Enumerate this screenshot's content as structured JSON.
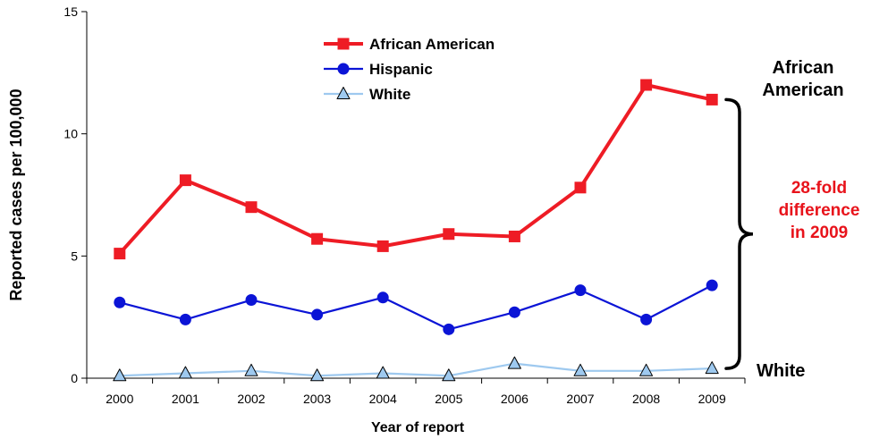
{
  "chart_data": {
    "type": "line",
    "title": "",
    "xlabel": "Year of report",
    "ylabel": "Reported cases per 100,000",
    "ylim": [
      0,
      15
    ],
    "y_ticks": [
      "0",
      "5",
      "10",
      "15"
    ],
    "categories": [
      "2000",
      "2001",
      "2002",
      "2003",
      "2004",
      "2005",
      "2006",
      "2007",
      "2008",
      "2009"
    ],
    "grid": false,
    "legend_position": "top-center",
    "series": [
      {
        "name": "African American",
        "color": "#ee1c25",
        "marker": "square",
        "values": [
          5.1,
          8.1,
          7.0,
          5.7,
          5.4,
          5.9,
          5.8,
          7.8,
          12.0,
          11.4
        ]
      },
      {
        "name": "Hispanic",
        "color": "#0b14d6",
        "marker": "circle",
        "values": [
          3.1,
          2.4,
          3.2,
          2.6,
          3.3,
          2.0,
          2.7,
          3.6,
          2.4,
          3.8
        ]
      },
      {
        "name": "White",
        "color": "#9ec9ef",
        "marker": "triangle",
        "values": [
          0.1,
          0.2,
          0.3,
          0.1,
          0.2,
          0.1,
          0.6,
          0.3,
          0.3,
          0.4
        ]
      }
    ],
    "annotations": {
      "top_label": "African\nAmerican",
      "difference": "28-fold\ndifference\nin 2009",
      "difference_color": "#e8131b",
      "bottom_label": "White"
    }
  }
}
